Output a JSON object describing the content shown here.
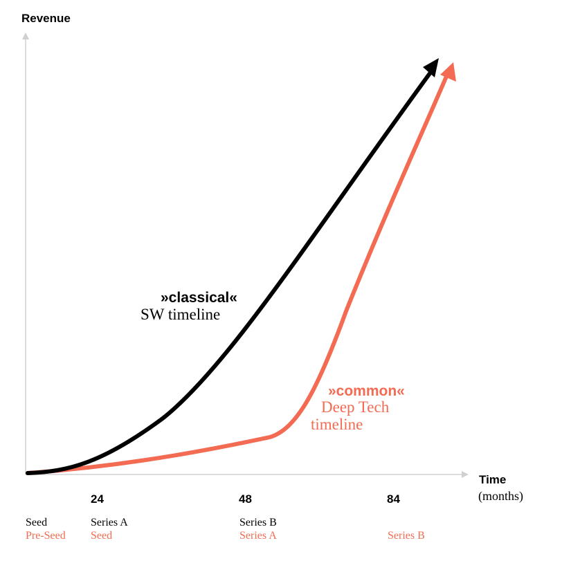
{
  "chart_data": {
    "type": "line",
    "ylabel": "Revenue",
    "xlabel": "Time",
    "xlabel_unit": "(months)",
    "x_ticks": [
      "24",
      "48",
      "84"
    ],
    "stage_labels_classical": [
      "Seed",
      "Series A",
      "Series B"
    ],
    "stage_labels_deeptech": [
      "Pre-Seed",
      "Seed",
      "Series A",
      "Series B"
    ],
    "series": [
      {
        "name": "classical",
        "label_line1": "»classical«",
        "label_line2": "SW timeline",
        "color": "#000000"
      },
      {
        "name": "common",
        "label_line1": "»common«",
        "label_line2": "Deep Tech",
        "label_line3": "timeline",
        "color": "#f26b52"
      }
    ],
    "axis_color": "#dcdcdc"
  }
}
